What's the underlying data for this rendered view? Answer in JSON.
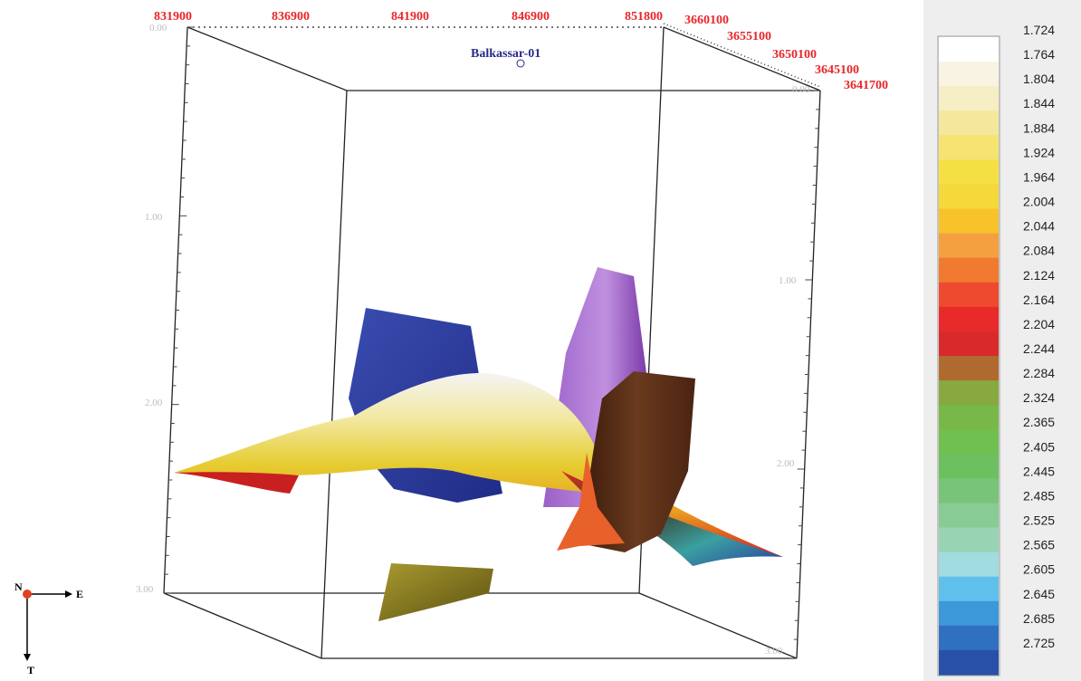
{
  "axes": {
    "x_labels": [
      "831900",
      "836900",
      "841900",
      "846900",
      "851800"
    ],
    "y_labels": [
      "3660100",
      "3655100",
      "3650100",
      "3645100",
      "3641700"
    ],
    "depth_left": [
      "0.00",
      "1.00",
      "2.00",
      "3.00"
    ],
    "depth_right": [
      "0.00",
      "1.00",
      "2.00",
      "3.00"
    ]
  },
  "well": {
    "name": "Balkassar-01"
  },
  "compass": {
    "north": "N",
    "east": "E",
    "down": "T"
  },
  "color_scale": {
    "entries": [
      {
        "label": "1.724",
        "color": "#ffffff"
      },
      {
        "label": "1.764",
        "color": "#f8f3e2"
      },
      {
        "label": "1.804",
        "color": "#f6eec4"
      },
      {
        "label": "1.844",
        "color": "#f5e79c"
      },
      {
        "label": "1.884",
        "color": "#f5e372"
      },
      {
        "label": "1.924",
        "color": "#f5e044"
      },
      {
        "label": "1.964",
        "color": "#f5d83a"
      },
      {
        "label": "2.004",
        "color": "#f7c22a"
      },
      {
        "label": "2.044",
        "color": "#f5a040"
      },
      {
        "label": "2.084",
        "color": "#f07a30"
      },
      {
        "label": "2.124",
        "color": "#ee4a30"
      },
      {
        "label": "2.164",
        "color": "#e82a2a"
      },
      {
        "label": "2.204",
        "color": "#d82a2a"
      },
      {
        "label": "2.244",
        "color": "#b06a30"
      },
      {
        "label": "2.284",
        "color": "#88a840"
      },
      {
        "label": "2.324",
        "color": "#78b848"
      },
      {
        "label": "2.365",
        "color": "#70c050"
      },
      {
        "label": "2.405",
        "color": "#6cc060"
      },
      {
        "label": "2.445",
        "color": "#78c478"
      },
      {
        "label": "2.485",
        "color": "#88cc94"
      },
      {
        "label": "2.525",
        "color": "#98d4b4"
      },
      {
        "label": "2.565",
        "color": "#a0dce0"
      },
      {
        "label": "2.605",
        "color": "#60c0ec"
      },
      {
        "label": "2.645",
        "color": "#3c98d8"
      },
      {
        "label": "2.685",
        "color": "#3070c0"
      },
      {
        "label": "2.725",
        "color": "#2850a8"
      }
    ]
  }
}
